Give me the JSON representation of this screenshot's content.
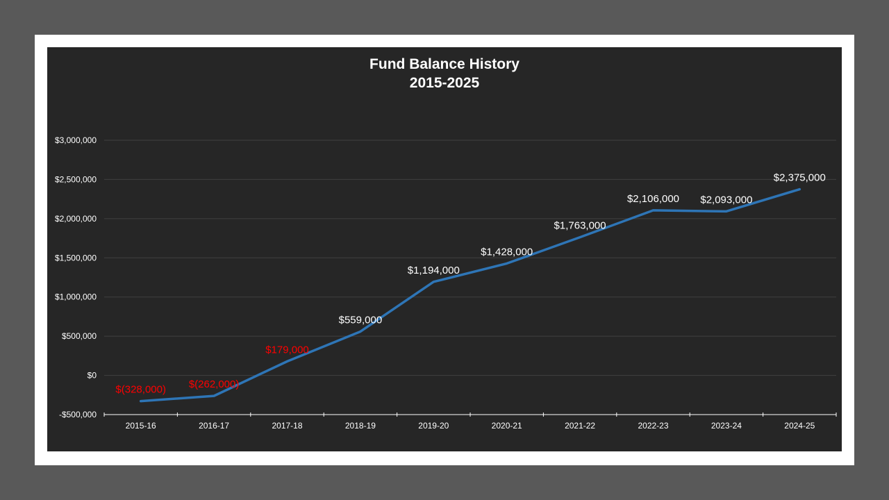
{
  "chart_data": {
    "type": "line",
    "title": "Fund Balance History",
    "subtitle": "2015-2025",
    "xlabel": "",
    "ylabel": "",
    "categories": [
      "2015-16",
      "2016-17",
      "2017-18",
      "2018-19",
      "2019-20",
      "2020-21",
      "2021-22",
      "2022-23",
      "2023-24",
      "2024-25"
    ],
    "series": [
      {
        "name": "Fund Balance",
        "color": "#2E75B6",
        "values": [
          -328000,
          -262000,
          179000,
          559000,
          1194000,
          1428000,
          1763000,
          2106000,
          2093000,
          2375000
        ]
      }
    ],
    "data_labels": [
      "$(328,000)",
      "$(262,000)",
      "$179,000",
      "$559,000",
      "$1,194,000",
      "$1,428,000",
      "$1,763,000",
      "$2,106,000",
      "$2,093,000",
      "$2,375,000"
    ],
    "data_label_colors": [
      "#FF0000",
      "#FF0000",
      "#FF0000",
      "#FFFFFF",
      "#FFFFFF",
      "#FFFFFF",
      "#FFFFFF",
      "#FFFFFF",
      "#FFFFFF",
      "#FFFFFF"
    ],
    "yticks": [
      3000000,
      2500000,
      2000000,
      1500000,
      1000000,
      500000,
      0,
      -500000
    ],
    "ytick_labels": [
      "$3,000,000",
      "$2,500,000",
      "$2,000,000",
      "$1,500,000",
      "$1,000,000",
      "$500,000",
      "$0",
      "-$500,000"
    ],
    "ylim": [
      -500000,
      3000000
    ],
    "grid": true,
    "legend": "none"
  },
  "colors": {
    "background": "#595959",
    "frame": "#FFFFFF",
    "chart_area": "#262626",
    "gridline": "#404040",
    "axis": "#FFFFFF",
    "line": "#2E75B6",
    "negative_label": "#FF0000",
    "positive_label": "#FFFFFF"
  }
}
